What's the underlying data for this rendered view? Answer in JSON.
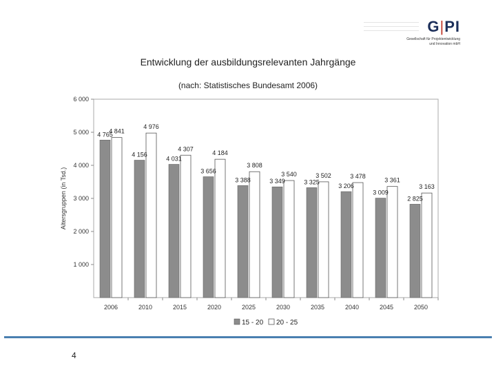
{
  "logo": {
    "mark_left": "G",
    "mark_sep": "|",
    "mark_right": "PI",
    "line1": "Gesellschaft für Projektentwicklung",
    "line2": "und Innovation mbH"
  },
  "page_number": "4",
  "colors": {
    "series_a": "#8c8c8c",
    "series_b": "#ffffff",
    "accent_rule": "#4a7fb0"
  },
  "chart_data": {
    "type": "bar",
    "title": "Entwicklung der ausbildungsrelevanten Jahrgänge",
    "subtitle": "(nach: Statistisches Bundesamt 2006)",
    "ylabel": "Altersgruppen (in Tsd.)",
    "xlabel": "",
    "ylim": [
      0,
      6000
    ],
    "yticks": [
      1000,
      2000,
      3000,
      4000,
      5000,
      6000
    ],
    "ytick_labels": [
      "1 000",
      "2 000",
      "3 000",
      "4 000",
      "5 000",
      "6 000"
    ],
    "categories": [
      "2006",
      "2010",
      "2015",
      "2020",
      "2025",
      "2030",
      "2035",
      "2040",
      "2045",
      "2050"
    ],
    "series": [
      {
        "name": "15 - 20",
        "color": "#8c8c8c",
        "values": [
          4765,
          4156,
          4031,
          3656,
          3388,
          3349,
          3325,
          3206,
          3009,
          2825
        ],
        "labels": [
          "4 765",
          "4 156",
          "4 031",
          "3 656",
          "3 388",
          "3 349",
          "3 325",
          "3 206",
          "3 009",
          "2 825"
        ]
      },
      {
        "name": "20 - 25",
        "color": "#ffffff",
        "values": [
          4841,
          4976,
          4307,
          4184,
          3808,
          3540,
          3502,
          3478,
          3361,
          3163
        ],
        "labels": [
          "4 841",
          "4 976",
          "4 307",
          "4 184",
          "3 808",
          "3 540",
          "3 502",
          "3 478",
          "3 361",
          "3 163"
        ]
      }
    ],
    "legend_position": "bottom",
    "grid": false
  }
}
